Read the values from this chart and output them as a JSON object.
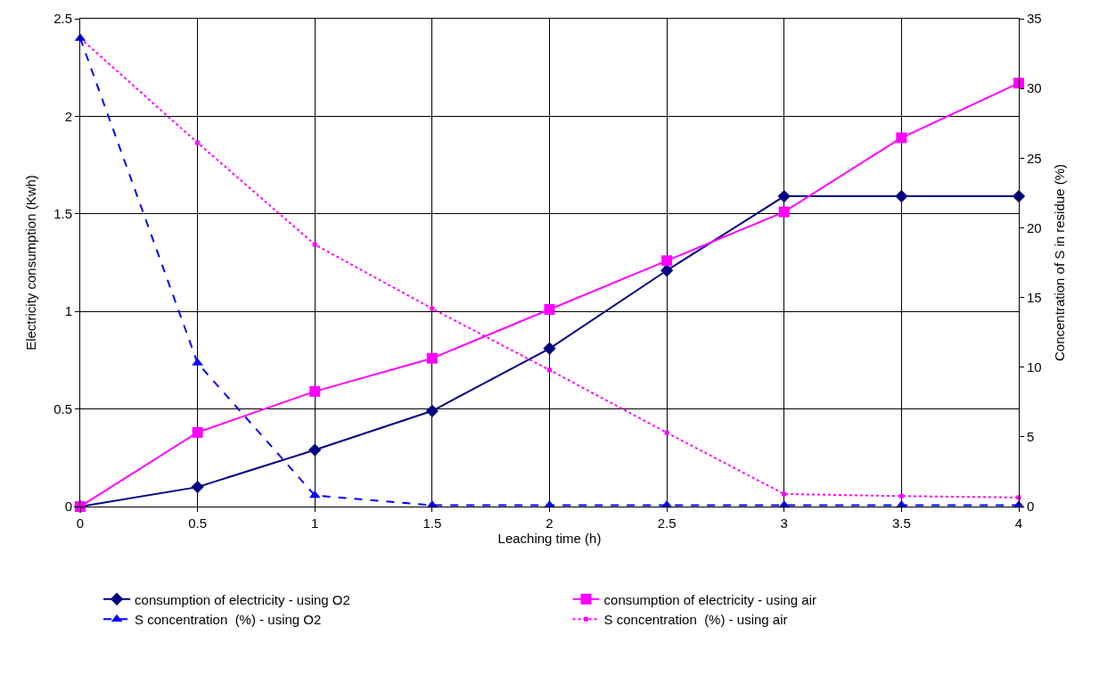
{
  "chart_data": {
    "type": "line",
    "xlabel": "Leaching time (h)",
    "ylabel": "Electricity consumption (Kwh)",
    "y2label": "Concentration of S in residue (%)",
    "x": [
      0,
      0.5,
      1,
      1.5,
      2,
      2.5,
      3,
      3.5,
      4
    ],
    "xlim": [
      0,
      4
    ],
    "xticks": [
      0,
      0.5,
      1,
      1.5,
      2,
      2.5,
      3,
      3.5,
      4
    ],
    "ylim": [
      0,
      2.5
    ],
    "yticks": [
      0,
      0.5,
      1,
      1.5,
      2,
      2.5
    ],
    "y2lim": [
      0,
      35
    ],
    "y2ticks": [
      0,
      5,
      10,
      15,
      20,
      25,
      30,
      35
    ],
    "grid": true,
    "legend": "bottom",
    "series": [
      {
        "name": "consumption of electricity - using O2",
        "color": "#000080",
        "marker": "diamond",
        "line_style": "solid",
        "values": [
          0,
          0.1,
          0.29,
          0.49,
          0.81,
          1.21,
          1.59,
          1.59,
          1.59
        ]
      },
      {
        "name": "consumption of electricity - using air",
        "color": "#ff00ff",
        "marker": "square",
        "line_style": "solid",
        "values": [
          0,
          0.38,
          0.59,
          0.76,
          1.01,
          1.26,
          1.51,
          1.89,
          2.17
        ]
      },
      {
        "name": "S concentration  (%) - using O2",
        "color": "#0000ff",
        "marker": "triangle",
        "line_style": "dashed",
        "axis": "y2",
        "values": [
          33.6,
          10.3,
          0.8,
          0.1,
          0.1,
          0.1,
          0.1,
          0.1,
          0.1
        ]
      },
      {
        "name": "S concentration  (%) - using air",
        "color": "#ff00ff",
        "marker": "square",
        "line_style": "dotted",
        "axis": "y2",
        "values": [
          33.6,
          26.1,
          18.8,
          14.2,
          9.8,
          5.3,
          0.9,
          0.75,
          0.65
        ]
      }
    ]
  }
}
